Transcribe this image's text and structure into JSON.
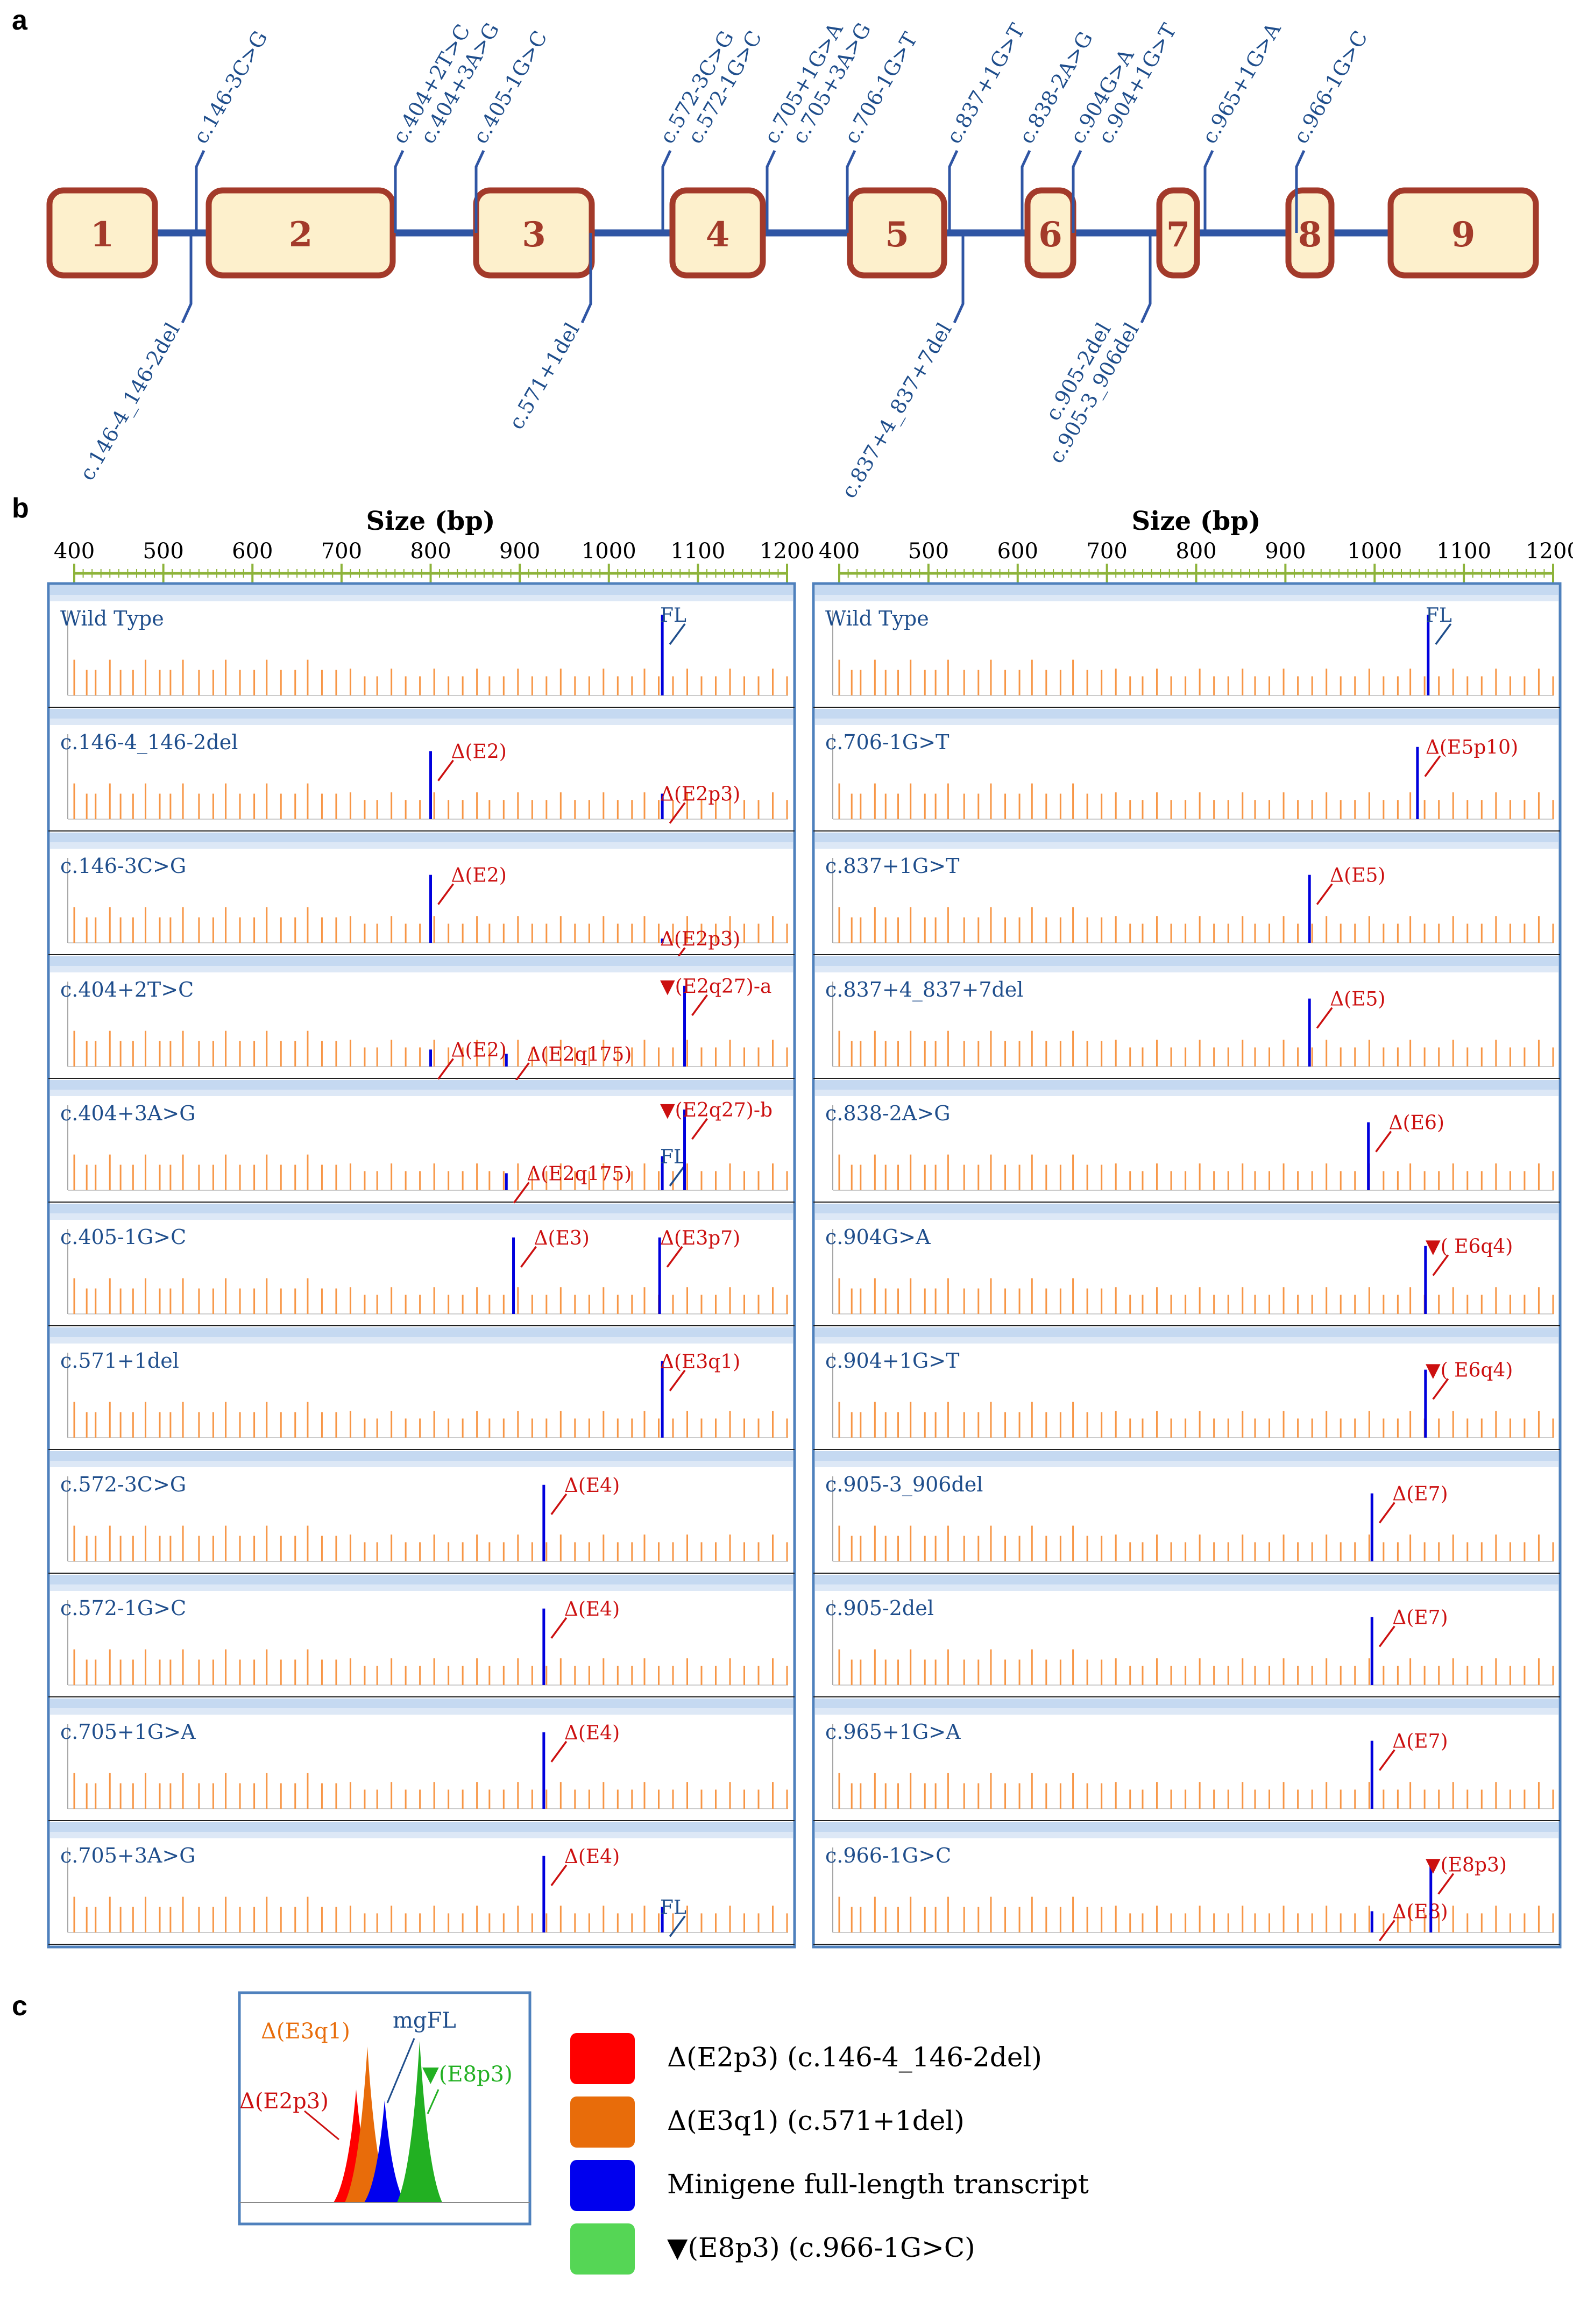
{
  "panel_labels": {
    "a": "a",
    "b": "b",
    "c": "c"
  },
  "exons": [
    "1",
    "2",
    "3",
    "4",
    "5",
    "6",
    "7",
    "8",
    "9"
  ],
  "variants_top": [
    "c.146-3C>G",
    "c.404+2T>C",
    "c.404+3A>G",
    "c.405-1G>C",
    "c.572-3C>G",
    "c.572-1G>C",
    "c.705+1G>A",
    "c.705+3A>G",
    "c.706-1G>T",
    "c.837+1G>T",
    "c.838-2A>G",
    "c.904G>A",
    "c.904+1G>T",
    "c.965+1G>A",
    "c.966-1G>C"
  ],
  "variants_bottom": [
    "c.146-4_146-2del",
    "c.571+1del",
    "c.837+4_837+7del",
    "c.905-3_906del",
    "c.905-2del"
  ],
  "axis": {
    "title": "Size (bp)",
    "ticks": [
      "400",
      "500",
      "600",
      "700",
      "800",
      "900",
      "1000",
      "1100",
      "1200"
    ]
  },
  "traces_left": [
    {
      "name": "Wild Type",
      "annotations": [
        "FL"
      ]
    },
    {
      "name": "c.146-4_146-2del",
      "annotations": [
        "Δ(E2)",
        "Δ(E2p3)"
      ]
    },
    {
      "name": "c.146-3C>G",
      "annotations": [
        "Δ(E2)",
        "Δ(E2p3)"
      ]
    },
    {
      "name": "c.404+2T>C",
      "annotations": [
        "Δ(E2)",
        "Δ(E2q175)",
        "▼(E2q27)-a"
      ]
    },
    {
      "name": "c.404+3A>G",
      "annotations": [
        "Δ(E2q175)",
        "FL",
        "▼(E2q27)-b"
      ]
    },
    {
      "name": "c.405-1G>C",
      "annotations": [
        "Δ(E3)",
        "Δ(E3p7)"
      ]
    },
    {
      "name": "c.571+1del",
      "annotations": [
        "Δ(E3q1)"
      ]
    },
    {
      "name": "c.572-3C>G",
      "annotations": [
        "Δ(E4)"
      ]
    },
    {
      "name": "c.572-1G>C",
      "annotations": [
        "Δ(E4)"
      ]
    },
    {
      "name": "c.705+1G>A",
      "annotations": [
        "Δ(E4)"
      ]
    },
    {
      "name": "c.705+3A>G",
      "annotations": [
        "Δ(E4)",
        "FL"
      ]
    }
  ],
  "traces_right": [
    {
      "name": "Wild Type",
      "annotations": [
        "FL"
      ]
    },
    {
      "name": "c.706-1G>T",
      "annotations": [
        "Δ(E5p10)"
      ]
    },
    {
      "name": "c.837+1G>T",
      "annotations": [
        "Δ(E5)"
      ]
    },
    {
      "name": "c.837+4_837+7del",
      "annotations": [
        "Δ(E5)"
      ]
    },
    {
      "name": "c.838-2A>G",
      "annotations": [
        "Δ(E6)"
      ]
    },
    {
      "name": "c.904G>A",
      "annotations": [
        "▼( E6q4)"
      ]
    },
    {
      "name": "c.904+1G>T",
      "annotations": [
        "▼( E6q4)"
      ]
    },
    {
      "name": "c.905-3_906del",
      "annotations": [
        "Δ(E7)"
      ]
    },
    {
      "name": "c.905-2del",
      "annotations": [
        "Δ(E7)"
      ]
    },
    {
      "name": "c.965+1G>A",
      "annotations": [
        "Δ(E7)"
      ]
    },
    {
      "name": "c.966-1G>C",
      "annotations": [
        "Δ(E8)",
        "▼(E8p3)"
      ]
    }
  ],
  "panel_c": {
    "peak_labels": [
      "Δ(E3q1)",
      "mgFL",
      "Δ(E2p3)",
      "▼(E8p3)"
    ],
    "legend": [
      {
        "label": "Δ(E2p3) (c.146-4_146-2del)",
        "color": "#ff0000"
      },
      {
        "label": "Δ(E3q1) (c.571+1del)",
        "color": "#e86c0a"
      },
      {
        "label": "Minigene full-length transcript",
        "color": "#0000ee"
      },
      {
        "label": "▼(E8p3) (c.966-1G>C)",
        "color": "#55d655"
      }
    ]
  },
  "colors": {
    "gene_line": "#2f55a4",
    "exon_fill": "#fdf0cc",
    "exon_border": "#a33a2a",
    "variant_text": "#1f4e8c",
    "annotation_red": "#cc1010",
    "size_std": "#f79646",
    "peak_blue": "#0000dd",
    "axis_green": "#8db33a",
    "frame_blue": "#4f81bd"
  }
}
